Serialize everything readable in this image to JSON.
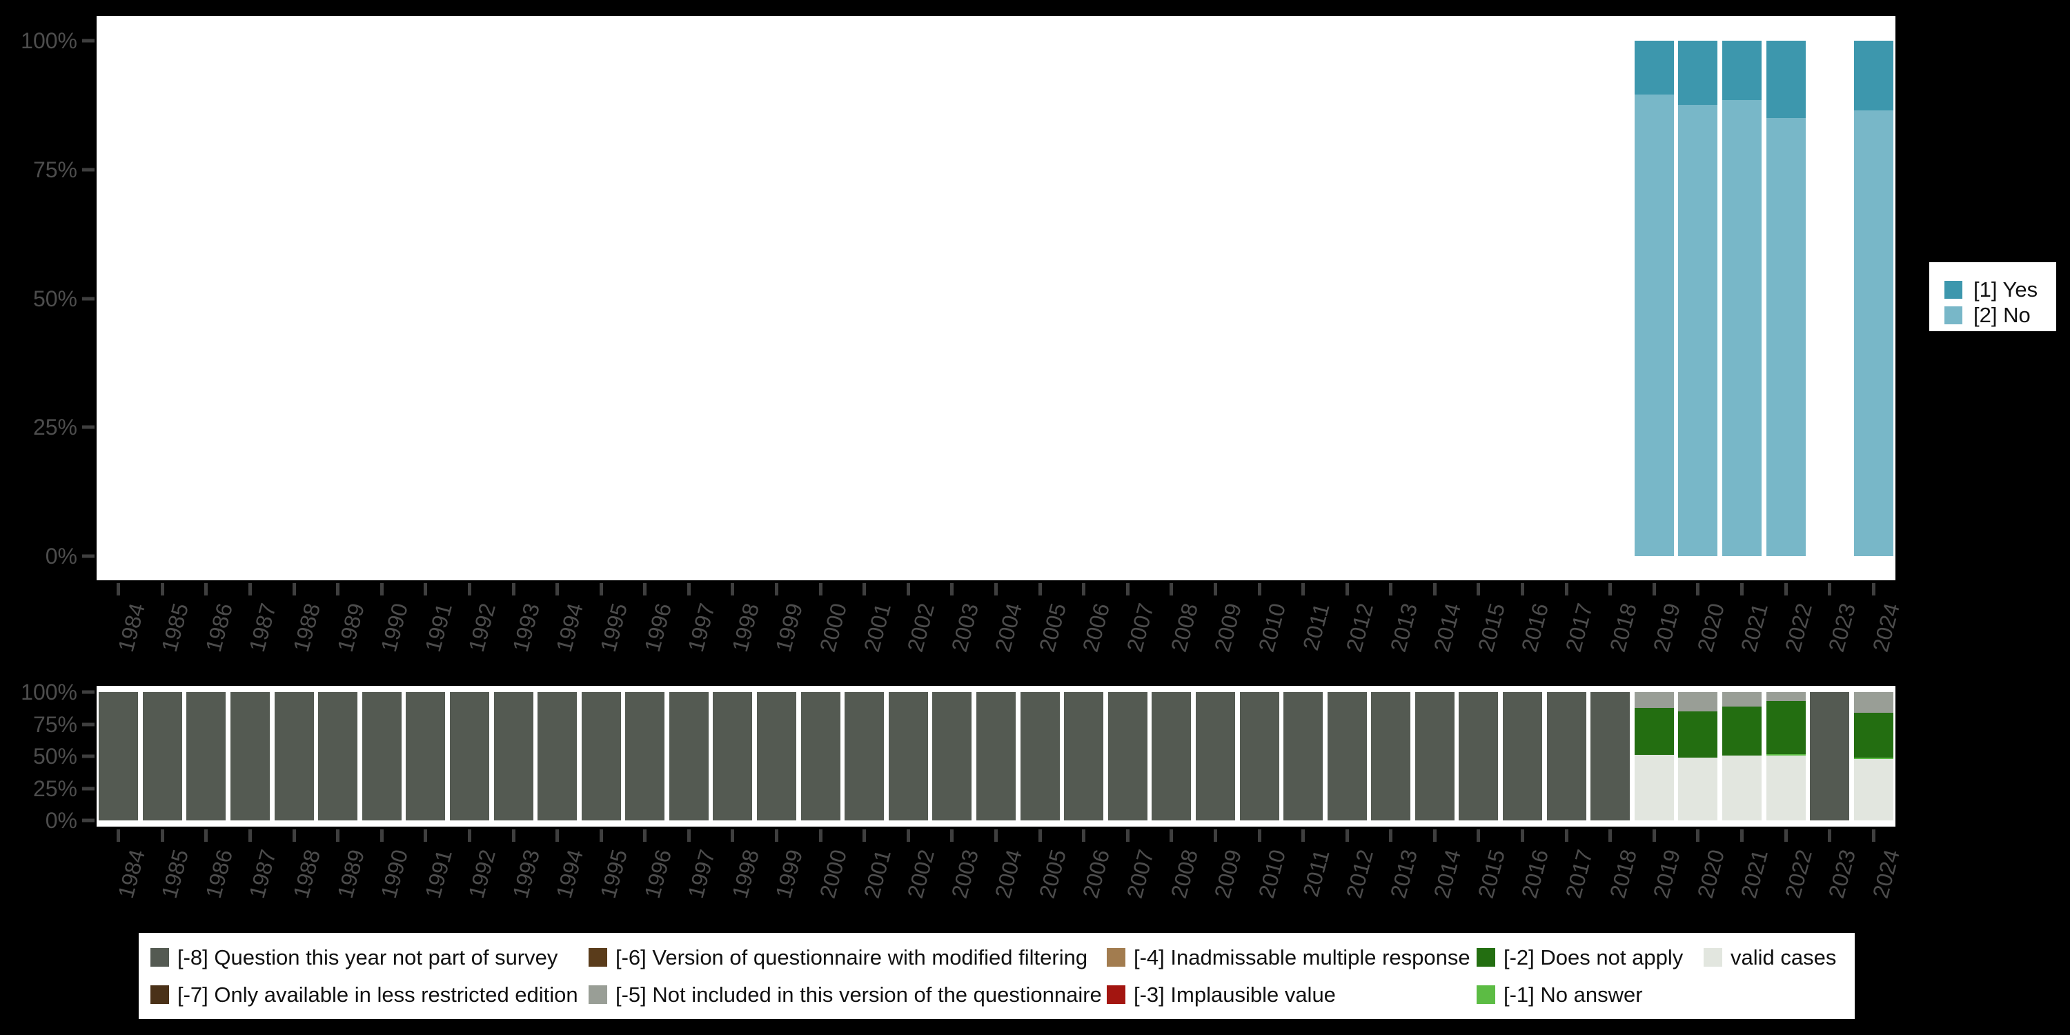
{
  "colors": {
    "yes": "#3d97ad",
    "no": "#78b7c8",
    "m8": "#545a52",
    "m7": "#4a3118",
    "m6": "#5a3c1b",
    "m5": "#999e96",
    "m4": "#a27c4f",
    "m3": "#a31510",
    "m2": "#236e11",
    "m1": "#5cbc44",
    "valid": "#e2e6df",
    "axis_text": "#4d4d4d",
    "tick": "#3f3f3f",
    "panel_bg": "#ffffff",
    "page_bg": "#000000",
    "legend_text": "#111111"
  },
  "years": [
    "1984",
    "1985",
    "1986",
    "1987",
    "1988",
    "1989",
    "1990",
    "1991",
    "1992",
    "1993",
    "1994",
    "1995",
    "1996",
    "1997",
    "1998",
    "1999",
    "2000",
    "2001",
    "2002",
    "2003",
    "2004",
    "2005",
    "2006",
    "2007",
    "2008",
    "2009",
    "2010",
    "2011",
    "2012",
    "2013",
    "2014",
    "2015",
    "2016",
    "2017",
    "2018",
    "2019",
    "2020",
    "2021",
    "2022",
    "2023",
    "2024"
  ],
  "y_axis": {
    "ticks": [
      {
        "label": "100%",
        "pct": 100
      },
      {
        "label": "75%",
        "pct": 75
      },
      {
        "label": "50%",
        "pct": 50
      },
      {
        "label": "25%",
        "pct": 25
      },
      {
        "label": "0%",
        "pct": 0
      }
    ]
  },
  "chart_data": [
    {
      "id": "variable-values",
      "type": "bar",
      "stacking": "percent",
      "title": "",
      "xlabel": "",
      "ylabel": "",
      "ylim": [
        0,
        100
      ],
      "grid": false,
      "legend_position": "right",
      "categories_ref": "years",
      "series": [
        {
          "key": "yes",
          "name": "[1] Yes",
          "color": "#3d97ad",
          "values": [
            0,
            0,
            0,
            0,
            0,
            0,
            0,
            0,
            0,
            0,
            0,
            0,
            0,
            0,
            0,
            0,
            0,
            0,
            0,
            0,
            0,
            0,
            0,
            0,
            0,
            0,
            0,
            0,
            0,
            0,
            0,
            0,
            0,
            0,
            0,
            10.5,
            12.5,
            11.5,
            15,
            0,
            13.5
          ]
        },
        {
          "key": "no",
          "name": "[2] No",
          "color": "#78b7c8",
          "values": [
            0,
            0,
            0,
            0,
            0,
            0,
            0,
            0,
            0,
            0,
            0,
            0,
            0,
            0,
            0,
            0,
            0,
            0,
            0,
            0,
            0,
            0,
            0,
            0,
            0,
            0,
            0,
            0,
            0,
            0,
            0,
            0,
            0,
            0,
            0,
            89.5,
            87.5,
            88.5,
            85,
            0,
            86.5
          ]
        }
      ]
    },
    {
      "id": "missing-values",
      "type": "bar",
      "stacking": "percent",
      "title": "",
      "xlabel": "",
      "ylabel": "",
      "ylim": [
        0,
        100
      ],
      "grid": false,
      "legend_position": "bottom",
      "categories_ref": "years",
      "series": [
        {
          "key": "m8",
          "name": "[-8] Question this year not part of survey",
          "color": "#545a52",
          "values": [
            100,
            100,
            100,
            100,
            100,
            100,
            100,
            100,
            100,
            100,
            100,
            100,
            100,
            100,
            100,
            100,
            100,
            100,
            100,
            100,
            100,
            100,
            100,
            100,
            100,
            100,
            100,
            100,
            100,
            100,
            100,
            100,
            100,
            100,
            100,
            0,
            0,
            0,
            0,
            100,
            0
          ]
        },
        {
          "key": "m5",
          "name": "[-5] Not included in this version of the questionnaire",
          "color": "#999e96",
          "values": [
            0,
            0,
            0,
            0,
            0,
            0,
            0,
            0,
            0,
            0,
            0,
            0,
            0,
            0,
            0,
            0,
            0,
            0,
            0,
            0,
            0,
            0,
            0,
            0,
            0,
            0,
            0,
            0,
            0,
            0,
            0,
            0,
            0,
            0,
            0,
            12.5,
            15,
            11.5,
            7,
            0,
            16
          ]
        },
        {
          "key": "m2",
          "name": "[-2] Does not apply",
          "color": "#236e11",
          "values": [
            0,
            0,
            0,
            0,
            0,
            0,
            0,
            0,
            0,
            0,
            0,
            0,
            0,
            0,
            0,
            0,
            0,
            0,
            0,
            0,
            0,
            0,
            0,
            0,
            0,
            0,
            0,
            0,
            0,
            0,
            0,
            0,
            0,
            0,
            0,
            36.5,
            36,
            38,
            41.5,
            0,
            35
          ]
        },
        {
          "key": "m1",
          "name": "[-1] No answer",
          "color": "#5cbc44",
          "values": [
            0,
            0,
            0,
            0,
            0,
            0,
            0,
            0,
            0,
            0,
            0,
            0,
            0,
            0,
            0,
            0,
            0,
            0,
            0,
            0,
            0,
            0,
            0,
            0,
            0,
            0,
            0,
            0,
            0,
            0,
            0,
            0,
            0,
            0,
            0,
            0,
            0,
            0,
            1,
            0,
            1
          ]
        },
        {
          "key": "valid",
          "name": "valid cases",
          "color": "#e2e6df",
          "values": [
            0,
            0,
            0,
            0,
            0,
            0,
            0,
            0,
            0,
            0,
            0,
            0,
            0,
            0,
            0,
            0,
            0,
            0,
            0,
            0,
            0,
            0,
            0,
            0,
            0,
            0,
            0,
            0,
            0,
            0,
            0,
            0,
            0,
            0,
            0,
            51,
            49,
            50.5,
            50.5,
            0,
            48
          ]
        }
      ]
    }
  ],
  "top_legend": {
    "items": [
      {
        "key": "yes",
        "label": "[1] Yes"
      },
      {
        "key": "no",
        "label": "[2] No"
      }
    ]
  },
  "bottom_legend": {
    "columns": [
      [
        {
          "key": "m8",
          "label": "[-8] Question this year not part of survey"
        },
        {
          "key": "m7",
          "label": "[-7] Only available in less restricted edition"
        }
      ],
      [
        {
          "key": "m6",
          "label": "[-6] Version of questionnaire with modified filtering"
        },
        {
          "key": "m5",
          "label": "[-5] Not included in this version of the questionnaire"
        }
      ],
      [
        {
          "key": "m4",
          "label": "[-4] Inadmissable multiple response"
        },
        {
          "key": "m3",
          "label": "[-3] Implausible value"
        }
      ],
      [
        {
          "key": "m2",
          "label": "[-2] Does not apply"
        },
        {
          "key": "m1",
          "label": "[-1] No answer"
        }
      ],
      [
        {
          "key": "valid",
          "label": "valid cases"
        }
      ]
    ]
  }
}
